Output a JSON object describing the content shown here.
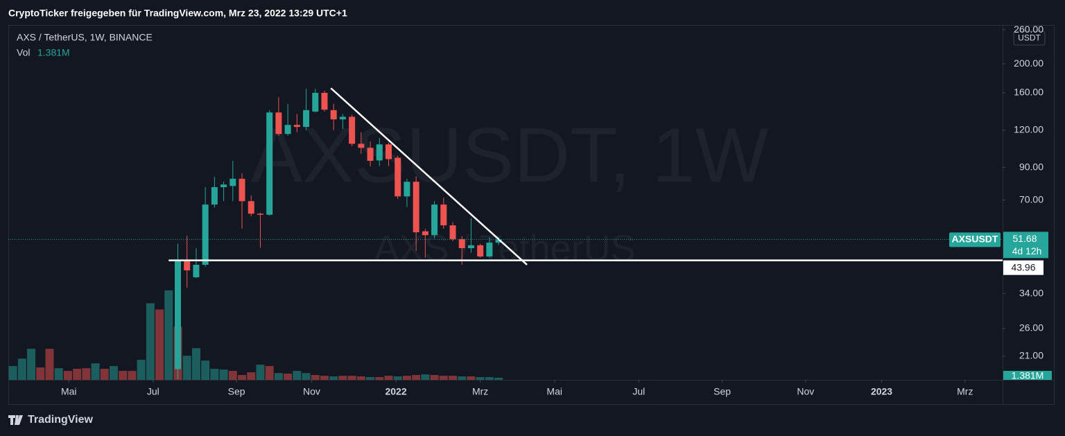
{
  "chart_data": {
    "type": "candlestick",
    "header": "CryptoTicker freigegeben für TradingView.com, Mrz 23, 2022 13:29 UTC+1",
    "title": "AXS / TetherUS, 1W, BINANCE",
    "watermark": "AXSUSDT, 1W",
    "watermark_sub": "AXS / TetherUS",
    "currency": "USDT",
    "brand": "TradingView",
    "symbol": "AXSUSDT",
    "countdown": "4d 12h",
    "log_scale": true,
    "grid": false,
    "up_color": "#26a69a",
    "down_color": "#ef5350",
    "categories": [
      null,
      null,
      null,
      null,
      null,
      null,
      null,
      null,
      null,
      null,
      null,
      null,
      null,
      null,
      null,
      null,
      null,
      null,
      null,
      null,
      null,
      null,
      null,
      null,
      null,
      null,
      null,
      null,
      null,
      null,
      null,
      null,
      null,
      null,
      null,
      null,
      null,
      null,
      null,
      null,
      null,
      null,
      null,
      null,
      null,
      null,
      null,
      null,
      null,
      null,
      null,
      null,
      null,
      null
    ],
    "open": [
      null,
      null,
      null,
      null,
      null,
      null,
      null,
      null,
      null,
      null,
      null,
      null,
      null,
      null,
      null,
      null,
      null,
      null,
      19,
      44,
      38.6,
      42.5,
      67.6,
      77.3,
      78,
      82.5,
      69.4,
      63,
      62.5,
      137.5,
      116.5,
      125,
      123,
      138.5,
      160,
      140,
      130.4,
      133,
      108,
      104.7,
      95,
      107.5,
      97,
      72,
      80.6,
      55,
      53.4,
      67.6,
      57.6,
      51.8,
      48.3,
      49.4,
      45.3,
      50.4
    ],
    "high": [
      null,
      null,
      null,
      null,
      null,
      null,
      null,
      null,
      null,
      null,
      null,
      null,
      null,
      null,
      null,
      null,
      null,
      null,
      50,
      53.2,
      48.3,
      77.3,
      83.7,
      80.6,
      94.7,
      86,
      72.5,
      63.5,
      140,
      154.7,
      146.6,
      136,
      165,
      165,
      162.5,
      147,
      136,
      135,
      118,
      110,
      113,
      109,
      98.6,
      82.5,
      84,
      56,
      69.4,
      71.3,
      59,
      53,
      60.8,
      50,
      52.5,
      52.5
    ],
    "low": [
      null,
      null,
      null,
      null,
      null,
      null,
      null,
      null,
      null,
      null,
      null,
      null,
      null,
      null,
      null,
      null,
      null,
      null,
      17.6,
      35.6,
      38.3,
      41.9,
      66,
      69.4,
      69.4,
      56.1,
      61.7,
      48.5,
      62,
      115,
      115,
      118,
      120,
      137.5,
      138.5,
      120,
      121,
      106,
      100,
      90.7,
      91,
      91,
      70.6,
      66.4,
      47.3,
      44.9,
      52,
      56.1,
      51,
      42.5,
      46.6,
      44.9,
      44.9,
      49.5
    ],
    "close": [
      null,
      null,
      null,
      null,
      null,
      null,
      null,
      null,
      null,
      null,
      null,
      null,
      null,
      null,
      null,
      null,
      null,
      null,
      44,
      40.7,
      42.5,
      67.6,
      77.3,
      78.9,
      82.5,
      69.4,
      63,
      62.5,
      137.5,
      116.5,
      124.9,
      123,
      140,
      160,
      140.5,
      130.4,
      133,
      108,
      104.7,
      94.7,
      107.5,
      96,
      72,
      80.6,
      54.6,
      53.4,
      67.6,
      57.6,
      51.8,
      48.3,
      49.4,
      45.3,
      50.4,
      51.68
    ],
    "volume": {
      "name": "Vol",
      "current_label": "1.381M",
      "values": [
        9.1,
        14,
        20.5,
        8.2,
        20.5,
        7.7,
        5.9,
        7.3,
        7.7,
        10.9,
        7.3,
        9.1,
        5.9,
        5.9,
        13.2,
        50.5,
        46.4,
        59,
        35,
        15.9,
        20.9,
        12.7,
        7.3,
        6.8,
        5.9,
        3.2,
        5,
        10,
        9.1,
        4.5,
        4.1,
        5.9,
        4.5,
        3.2,
        2.7,
        2.3,
        2.7,
        2.7,
        2.3,
        1.8,
        1.8,
        2.7,
        2.3,
        2.7,
        3.2,
        3.6,
        3.2,
        2.7,
        2.7,
        2.3,
        2.3,
        1.8,
        1.8,
        1.381
      ],
      "colors": [
        "#26a69a",
        "#26a69a",
        "#26a69a",
        "#ef5350",
        "#ef5350",
        "#26a69a",
        "#ef5350",
        "#ef5350",
        "#ef5350",
        "#26a69a",
        "#ef5350",
        "#26a69a",
        "#ef5350",
        "#ef5350",
        "#26a69a",
        "#26a69a",
        "#ef5350",
        "#26a69a",
        "#ef5350",
        "#26a69a",
        "#26a69a",
        "#26a69a",
        "#26a69a",
        "#26a69a",
        "#ef5350",
        "#ef5350",
        "#ef5350",
        "#26a69a",
        "#ef5350",
        "#26a69a",
        "#ef5350",
        "#26a69a",
        "#26a69a",
        "#ef5350",
        "#ef5350",
        "#26a69a",
        "#ef5350",
        "#ef5350",
        "#ef5350",
        "#26a69a",
        "#ef5350",
        "#ef5350",
        "#26a69a",
        "#ef5350",
        "#ef5350",
        "#26a69a",
        "#ef5350",
        "#ef5350",
        "#ef5350",
        "#26a69a",
        "#ef5350",
        "#26a69a",
        "#26a69a",
        "#26a69a"
      ],
      "vlim": [
        0,
        64
      ]
    },
    "trendline": {
      "x": [
        34.7,
        56.1
      ],
      "y": [
        165.8,
        42.5
      ]
    },
    "hline": {
      "value": 43.96,
      "start": 17
    },
    "xlim": [
      -0.5,
      108
    ],
    "xticks": [
      {
        "value": 6.1,
        "label": "Mai"
      },
      {
        "value": 15.3,
        "label": "Jul"
      },
      {
        "value": 24.4,
        "label": "Sep"
      },
      {
        "value": 32.6,
        "label": "Nov"
      },
      {
        "value": 41.8,
        "label": "2022"
      },
      {
        "value": 51.0,
        "label": "Mrz"
      },
      {
        "value": 59.1,
        "label": "Mai"
      },
      {
        "value": 68.3,
        "label": "Jul"
      },
      {
        "value": 77.4,
        "label": "Sep"
      },
      {
        "value": 86.5,
        "label": "Nov"
      },
      {
        "value": 94.8,
        "label": "2023"
      },
      {
        "value": 103.9,
        "label": "Mrz"
      }
    ],
    "ylim": [
      17.5,
      270
    ],
    "yticks": [
      {
        "value": 21,
        "label": "21.00"
      },
      {
        "value": 26,
        "label": "26.00"
      },
      {
        "value": 34,
        "label": "34.00"
      },
      {
        "value": 70,
        "label": "70.00"
      },
      {
        "value": 90,
        "label": "90.00"
      },
      {
        "value": 120,
        "label": "120.00"
      },
      {
        "value": 160,
        "label": "160.00"
      },
      {
        "value": 200,
        "label": "200.00"
      },
      {
        "value": 260,
        "label": "260.00"
      }
    ]
  }
}
